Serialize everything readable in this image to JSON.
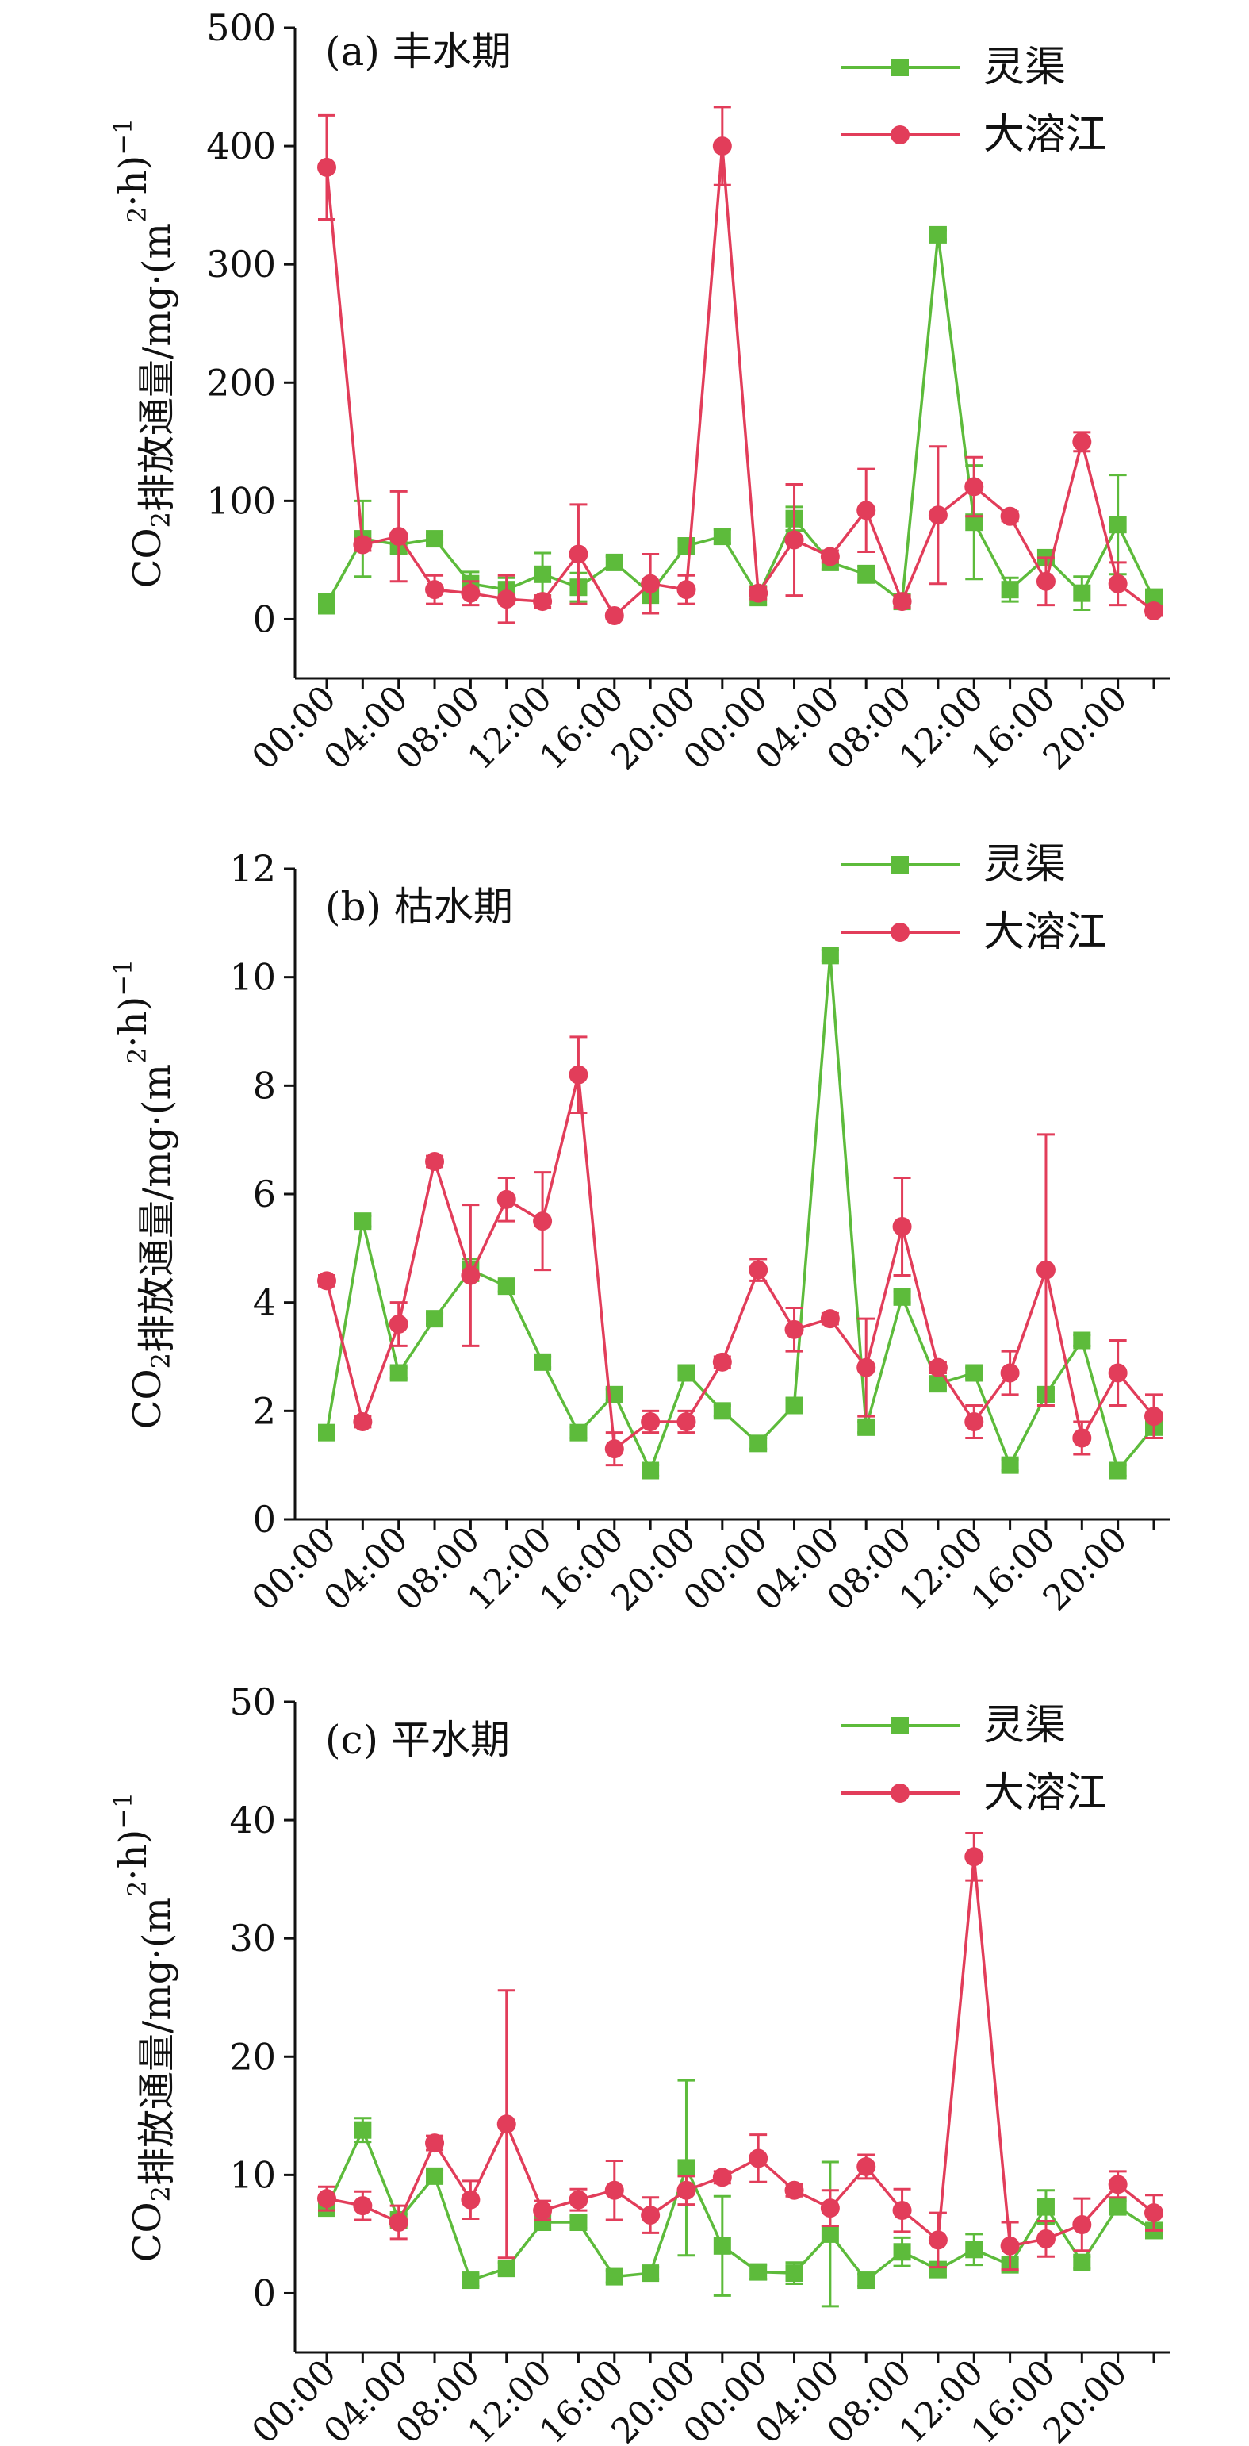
{
  "y_axis_label_prefix": "CO",
  "y_axis_label_sub": "2",
  "y_axis_label_main": "排放通量/mg·(m",
  "y_axis_label_sup": "2",
  "y_axis_label_end": "·h)",
  "y_axis_label_exp": "−1",
  "series_names": [
    "灵渠",
    "大溶江"
  ],
  "colors": {
    "series1": "#5dbb3b",
    "series2": "#e23d5a",
    "axis": "#111111"
  },
  "x_tick_labels": [
    "00:00",
    "04:00",
    "08:00",
    "12:00",
    "16:00",
    "20:00",
    "00:00",
    "04:00",
    "08:00",
    "12:00",
    "16:00",
    "20:00"
  ],
  "chart_data": [
    {
      "type": "line",
      "title": "(a) 丰水期",
      "ylim": [
        -50,
        500
      ],
      "y_ticks": [
        0,
        100,
        200,
        300,
        400,
        500
      ],
      "x_positions": 24,
      "series": [
        {
          "name": "灵渠",
          "values": [
            13,
            68,
            63,
            68,
            30,
            25,
            38,
            27,
            48,
            22,
            62,
            70,
            20,
            85,
            48,
            38,
            15,
            325,
            82,
            25,
            52,
            22,
            80,
            17
          ],
          "errors": [
            8,
            32,
            8,
            3,
            10,
            10,
            18,
            12,
            5,
            8,
            3,
            6,
            8,
            10,
            6,
            7,
            5,
            4,
            48,
            10,
            6,
            14,
            42,
            8
          ]
        },
        {
          "name": "大溶江",
          "values": [
            382,
            63,
            70,
            25,
            22,
            17,
            15,
            55,
            3,
            30,
            25,
            400,
            22,
            67,
            53,
            92,
            15,
            88,
            112,
            87,
            32,
            150,
            30,
            7
          ],
          "errors": [
            44,
            5,
            38,
            12,
            10,
            20,
            5,
            42,
            2,
            25,
            12,
            33,
            5,
            47,
            5,
            35,
            5,
            58,
            25,
            4,
            20,
            8,
            18,
            4
          ]
        }
      ]
    },
    {
      "type": "line",
      "title": "(b) 枯水期",
      "ylim": [
        0,
        12
      ],
      "y_ticks": [
        0,
        2,
        4,
        6,
        8,
        10,
        12
      ],
      "x_positions": 24,
      "series": [
        {
          "name": "灵渠",
          "values": [
            1.6,
            5.5,
            2.7,
            3.7,
            4.6,
            4.3,
            2.9,
            1.6,
            2.3,
            0.9,
            2.7,
            2.0,
            1.4,
            2.1,
            10.4,
            1.7,
            4.1,
            2.5,
            2.7,
            1.0,
            2.3,
            3.3,
            0.9,
            1.7
          ],
          "errors": [
            0.1,
            0.1,
            0.1,
            0.1,
            0.2,
            0.1,
            0.1,
            0.1,
            0.1,
            0.1,
            0.1,
            0.1,
            0.1,
            0.1,
            0.1,
            0.1,
            0.1,
            0.1,
            0.1,
            0.1,
            0.1,
            0.1,
            0.1,
            0.1
          ]
        },
        {
          "name": "大溶江",
          "values": [
            4.4,
            1.8,
            3.6,
            6.6,
            4.5,
            5.9,
            5.5,
            8.2,
            1.3,
            1.8,
            1.8,
            2.9,
            4.6,
            3.5,
            3.7,
            2.8,
            5.4,
            2.8,
            1.8,
            2.7,
            4.6,
            1.5,
            2.7,
            1.9
          ],
          "errors": [
            0.1,
            0.1,
            0.4,
            0.1,
            1.3,
            0.4,
            0.9,
            0.7,
            0.3,
            0.2,
            0.2,
            0.1,
            0.2,
            0.4,
            0.1,
            0.9,
            0.9,
            0.1,
            0.3,
            0.4,
            2.5,
            0.3,
            0.6,
            0.4
          ]
        }
      ]
    },
    {
      "type": "line",
      "title": "(c) 平水期",
      "ylim": [
        -5,
        50
      ],
      "y_ticks": [
        0,
        10,
        20,
        30,
        40,
        50
      ],
      "x_positions": 24,
      "series": [
        {
          "name": "灵渠",
          "values": [
            7.2,
            13.8,
            6.2,
            9.9,
            1.1,
            2.1,
            6.0,
            6.0,
            1.4,
            1.7,
            10.6,
            4.0,
            1.8,
            1.7,
            5.0,
            1.1,
            3.5,
            2.0,
            3.7,
            2.4,
            7.3,
            2.6,
            7.3,
            5.3
          ],
          "errors": [
            0.5,
            1.0,
            0.5,
            0.5,
            0.5,
            0.5,
            0.6,
            0.5,
            0.5,
            0.5,
            7.4,
            4.2,
            0.6,
            0.9,
            6.1,
            0.5,
            1.2,
            0.5,
            1.3,
            0.5,
            1.4,
            0.5,
            0.5,
            0.5
          ]
        },
        {
          "name": "大溶江",
          "values": [
            8.0,
            7.4,
            6.0,
            12.7,
            7.9,
            14.3,
            7.0,
            7.9,
            8.7,
            6.6,
            8.7,
            9.8,
            11.4,
            8.7,
            7.2,
            10.7,
            7.0,
            4.5,
            36.9,
            4.0,
            4.6,
            5.8,
            9.2,
            6.8
          ],
          "errors": [
            1.0,
            1.2,
            1.4,
            0.6,
            1.6,
            11.3,
            0.8,
            0.9,
            2.5,
            1.5,
            1.2,
            0.5,
            2.0,
            0.5,
            1.5,
            1.0,
            1.8,
            2.3,
            2.0,
            2.0,
            1.5,
            2.2,
            1.1,
            1.5
          ]
        }
      ]
    }
  ]
}
